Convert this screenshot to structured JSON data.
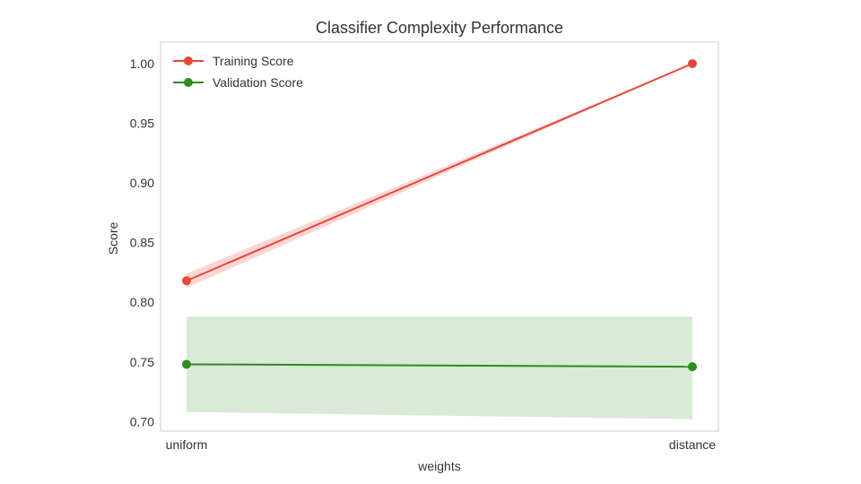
{
  "chart_data": {
    "type": "line",
    "title": "Classifier Complexity Performance",
    "xlabel": "weights",
    "ylabel": "Score",
    "categories": [
      "uniform",
      "distance"
    ],
    "ylim": [
      0.692,
      1.018
    ],
    "yticks": [
      0.7,
      0.75,
      0.8,
      0.85,
      0.9,
      0.95,
      1.0
    ],
    "ytick_labels": [
      "0.70",
      "0.75",
      "0.80",
      "0.85",
      "0.90",
      "0.95",
      "1.00"
    ],
    "grid": false,
    "legend_position": "top-left",
    "series": [
      {
        "name": "Training Score",
        "color": "#e8473c",
        "values": [
          0.818,
          1.0
        ],
        "band_lower": [
          0.812,
          1.0
        ],
        "band_upper": [
          0.824,
          1.0
        ]
      },
      {
        "name": "Validation Score",
        "color": "#2e8b1e",
        "values": [
          0.748,
          0.746
        ],
        "band_lower": [
          0.708,
          0.702
        ],
        "band_upper": [
          0.788,
          0.788
        ]
      }
    ]
  }
}
